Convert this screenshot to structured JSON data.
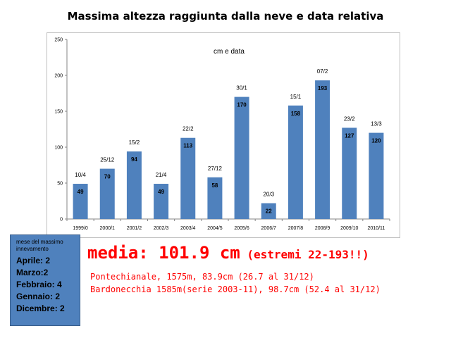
{
  "chart_data": {
    "type": "bar",
    "title": "Massima altezza raggiunta dalla neve  e data relativa",
    "subtitle": "cm e data",
    "categories": [
      "1999/0",
      "2000/1",
      "2001/2",
      "2002/3",
      "2003/4",
      "2004/5",
      "2005/6",
      "2006/7",
      "2007/8",
      "2008/9",
      "2009/10",
      "2010/11"
    ],
    "values": [
      49,
      70,
      94,
      49,
      113,
      58,
      170,
      22,
      158,
      193,
      127,
      120
    ],
    "dates": [
      "10/4",
      "25/12",
      "15/2",
      "21/4",
      "22/2",
      "27/12",
      "30/1",
      "20/3",
      "15/1",
      "07/2",
      "23/2",
      "13/3"
    ],
    "ylim": [
      0,
      250
    ],
    "yticks": [
      0,
      50,
      100,
      150,
      200,
      250
    ],
    "xlabel": "",
    "ylabel": "",
    "grid": false,
    "bar_color": "#4f81bd"
  },
  "legend_box": {
    "header": "mese del massimo innevamento",
    "rows": [
      "Aprile: 2",
      "Marzo:2",
      "Febbraio: 4",
      "Gennaio: 2",
      "Dicembre: 2"
    ]
  },
  "summary": {
    "media": "media: 101.9 cm",
    "extremes": "(estremi 22-193!!)",
    "note1": "Pontechianale, 1575m, 83.9cm (26.7 al 31/12)",
    "note2": "Bardonecchia 1585m(serie 2003-11), 98.7cm (52.4 al 31/12)"
  }
}
